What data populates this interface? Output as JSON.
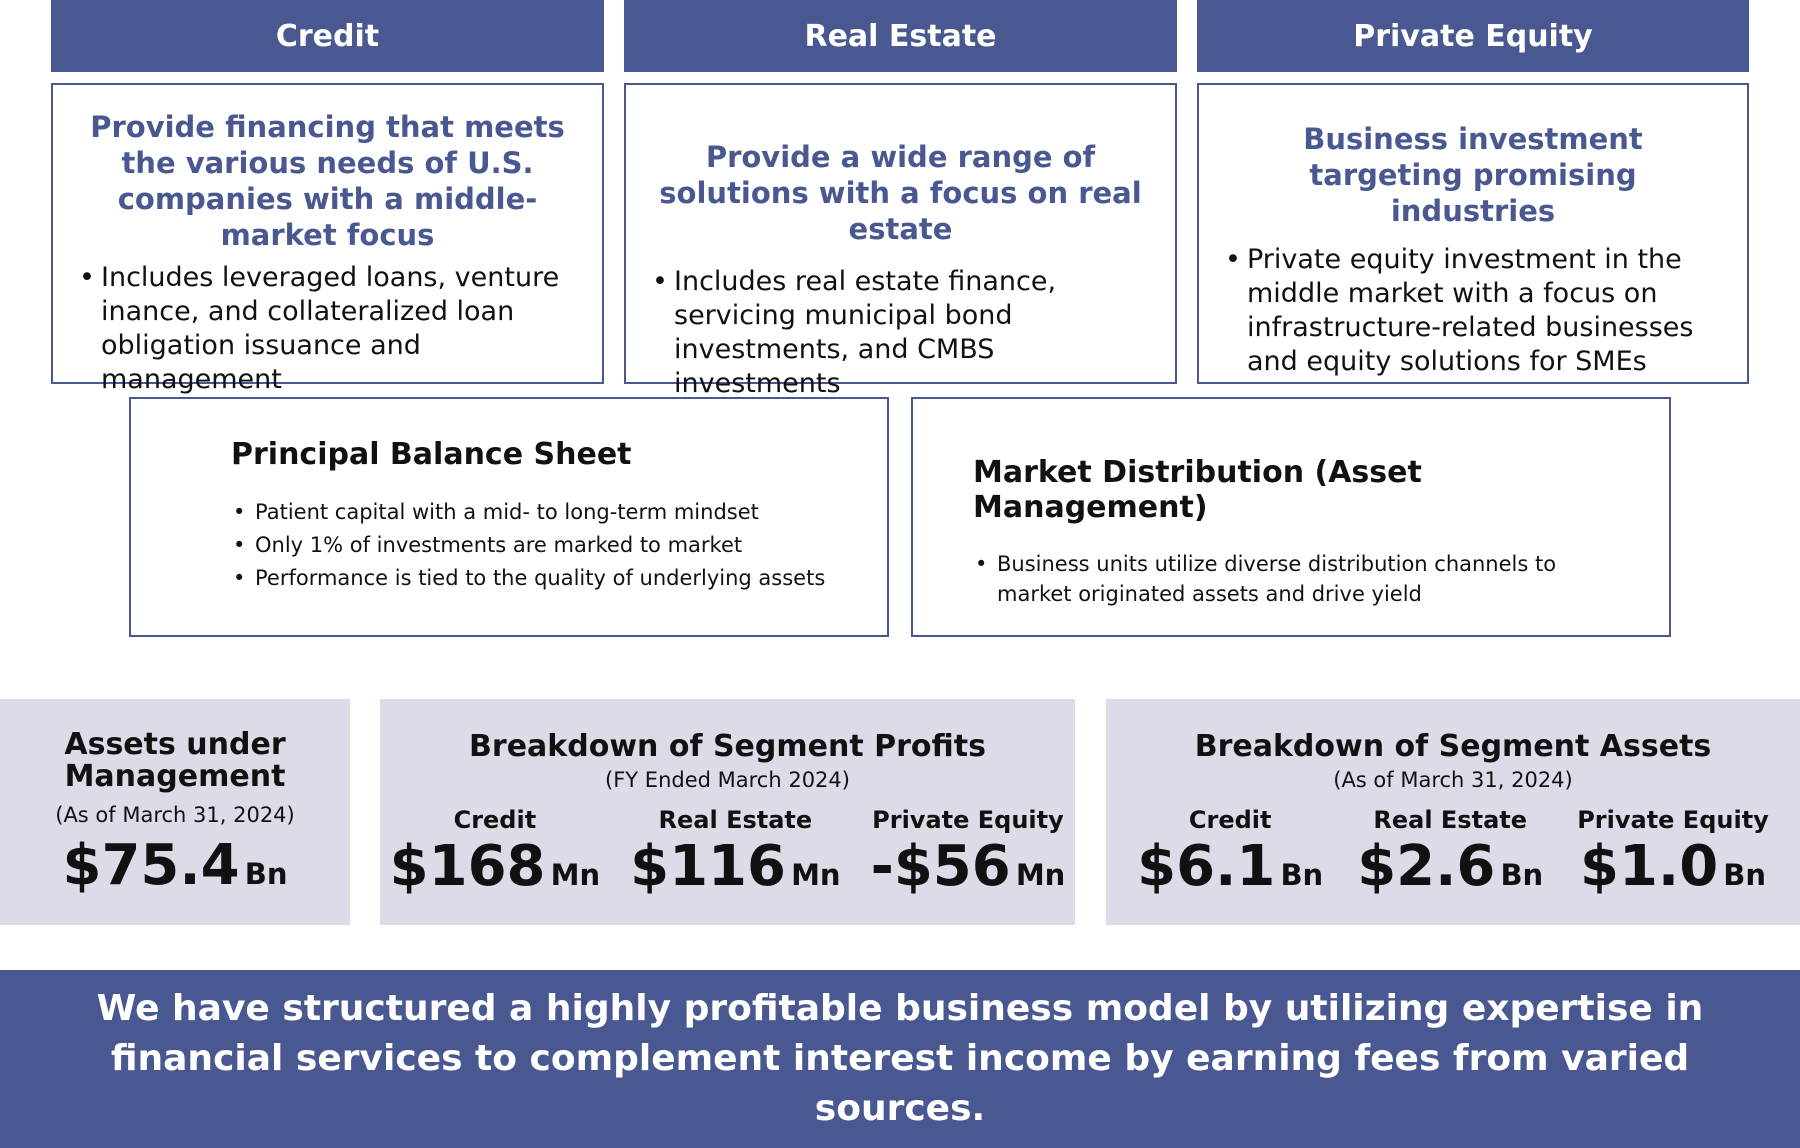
{
  "segments": [
    {
      "name": "Credit",
      "heading": "Provide financing that meets the various needs of U.S. companies with a middle-market focus",
      "bullet": "Includes leveraged loans, venture inance, and collateralized loan obligation issuance and management"
    },
    {
      "name": "Real Estate",
      "heading": "Provide a wide range of solutions with a focus on real estate",
      "bullet": "Includes real estate finance, servicing municipal bond investments, and CMBS investments"
    },
    {
      "name": "Private Equity",
      "heading": "Business investment targeting promising industries",
      "bullet": "Private equity investment in the middle market with a focus on infrastructure-related businesses and equity solutions for SMEs"
    }
  ],
  "balance_sheet": {
    "title": "Principal Balance Sheet",
    "bullets": [
      "Patient capital with a mid- to long-term mindset",
      "Only 1% of investments are marked to market",
      "Performance is tied to the quality of underlying assets"
    ]
  },
  "distribution": {
    "title": "Market Distribution (Asset Management)",
    "bullets": [
      "Business units utilize diverse distribution channels to market originated assets and drive yield"
    ]
  },
  "aum": {
    "title": "Assets under Management",
    "subtitle": "(As of March 31, 2024)",
    "value": "$75.4",
    "unit": "Bn"
  },
  "profits": {
    "title": "Breakdown of Segment Profits",
    "subtitle": "(FY Ended March 2024)",
    "items": [
      {
        "label": "Credit",
        "value": "$168",
        "unit": "Mn"
      },
      {
        "label": "Real Estate",
        "value": "$116",
        "unit": "Mn"
      },
      {
        "label": "Private Equity",
        "value": "-$56",
        "unit": "Mn"
      }
    ]
  },
  "assets": {
    "title": "Breakdown of Segment Assets",
    "subtitle": "(As of March 31, 2024)",
    "items": [
      {
        "label": "Credit",
        "value": "$6.1",
        "unit": "Bn"
      },
      {
        "label": "Real Estate",
        "value": "$2.6",
        "unit": "Bn"
      },
      {
        "label": "Private Equity",
        "value": "$1.0",
        "unit": "Bn"
      }
    ]
  },
  "banner": "We have structured a highly profitable business model by utilizing expertise in financial services to complement interest income by earning fees from varied sources.",
  "colors": {
    "accent": "#4a5891",
    "panel": "#dcdce9"
  }
}
